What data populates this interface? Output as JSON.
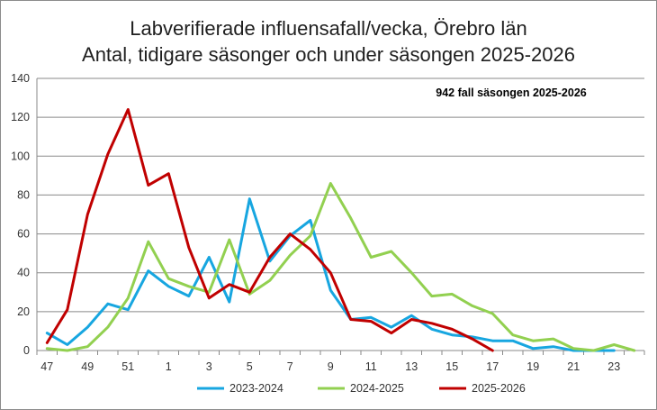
{
  "chart_data": {
    "type": "line",
    "title": "Labverifierade influensafall/vecka, Örebro län",
    "subtitle": "Antal, tidigare säsonger och under säsongen 2025-2026",
    "annotation": "942 fall säsongen 2025-2026",
    "xlabel": "",
    "ylabel": "",
    "ylim": [
      0,
      140
    ],
    "yticks": [
      0,
      20,
      40,
      60,
      80,
      100,
      120,
      140
    ],
    "x": [
      47,
      48,
      49,
      50,
      51,
      52,
      1,
      2,
      3,
      4,
      5,
      6,
      7,
      8,
      9,
      10,
      11,
      12,
      13,
      14,
      15,
      16,
      17,
      18,
      19,
      20,
      21,
      22,
      23,
      24
    ],
    "xtick_labels": [
      "47",
      "49",
      "51",
      "1",
      "3",
      "5",
      "7",
      "9",
      "11",
      "13",
      "15",
      "17",
      "19",
      "21",
      "23"
    ],
    "grid": "horizontal",
    "legend_position": "bottom",
    "series": [
      {
        "name": "2023-2024",
        "color": "#17a6e0",
        "values": [
          9,
          3,
          12,
          24,
          21,
          41,
          33,
          28,
          48,
          25,
          78,
          46,
          59,
          67,
          31,
          16,
          17,
          12,
          18,
          11,
          8,
          7,
          5,
          5,
          1,
          2,
          0,
          0,
          0,
          null
        ]
      },
      {
        "name": "2024-2025",
        "color": "#92d050",
        "values": [
          1,
          0,
          2,
          12,
          27,
          56,
          37,
          33,
          30,
          57,
          29,
          36,
          49,
          59,
          86,
          68,
          48,
          51,
          40,
          28,
          29,
          23,
          19,
          8,
          5,
          6,
          1,
          0,
          3,
          0
        ]
      },
      {
        "name": "2025-2026",
        "color": "#c00000",
        "values": [
          4,
          21,
          70,
          101,
          124,
          85,
          91,
          53,
          27,
          34,
          30,
          48,
          60,
          52,
          40,
          16,
          15,
          9,
          16,
          14,
          11,
          6,
          0,
          null,
          null,
          null,
          null,
          null,
          null,
          null
        ]
      }
    ]
  }
}
